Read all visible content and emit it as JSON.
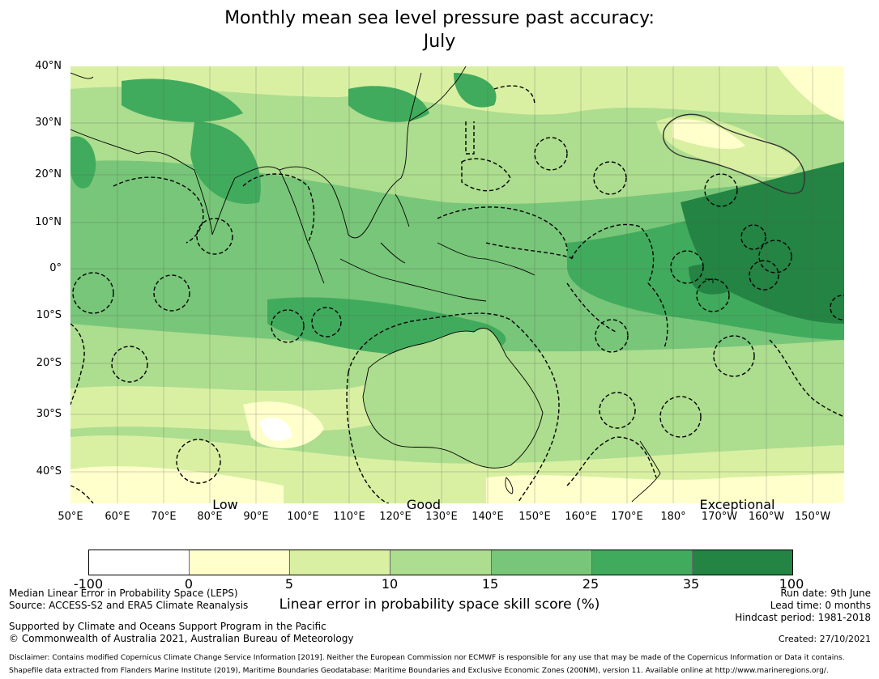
{
  "title": {
    "line1": "Monthly mean sea level pressure past accuracy:",
    "line2": "July"
  },
  "map": {
    "lat_ticks": [
      "40°N",
      "30°N",
      "20°N",
      "10°N",
      "0°",
      "10°S",
      "20°S",
      "30°S",
      "40°S"
    ],
    "lon_ticks": [
      "50°E",
      "60°E",
      "70°E",
      "80°E",
      "90°E",
      "100°E",
      "110°E",
      "120°E",
      "130°E",
      "140°E",
      "150°E",
      "160°E",
      "170°E",
      "180°",
      "170°W",
      "160°W",
      "150°W"
    ],
    "category_labels": [
      "Low",
      "Good",
      "Exceptional"
    ]
  },
  "colorbar": {
    "colors": [
      "#ffffff",
      "#ffffcc",
      "#d9f0a3",
      "#addd8e",
      "#78c679",
      "#41ab5d",
      "#238443"
    ],
    "ticks": [
      "-100",
      "0",
      "5",
      "10",
      "15",
      "25",
      "35",
      "100"
    ],
    "label": "Linear error in probability space skill score (%)"
  },
  "footer": {
    "metric": "Median Linear Error in Probability Space (LEPS)",
    "source": "Source: ACCESS-S2 and ERA5 Climate Reanalysis",
    "support": "Supported by Climate and Oceans Support Program in the Pacific",
    "copyright": "© Commonwealth of Australia 2021, Australian Bureau of Meteorology",
    "run_date": "Run date: 9th June",
    "lead_time": "Lead time: 0 months",
    "hindcast": "Hindcast period: 1981-2018",
    "created": "Created: 27/10/2021",
    "disclaimer": "Disclaimer: Contains modified Copernicus Climate Change Service Information [2019]. Neither the European Commission nor ECMWF is responsible for any use that may be made of the Copernicus Information or Data it contains.",
    "shapefile": "Shapefile data extracted from Flanders Marine Institute (2019), Maritime Boundaries Geodatabase: Maritime Boundaries and Exclusive Economic Zones (200NM), version 11. Available online at http://www.marineregions.org/."
  }
}
